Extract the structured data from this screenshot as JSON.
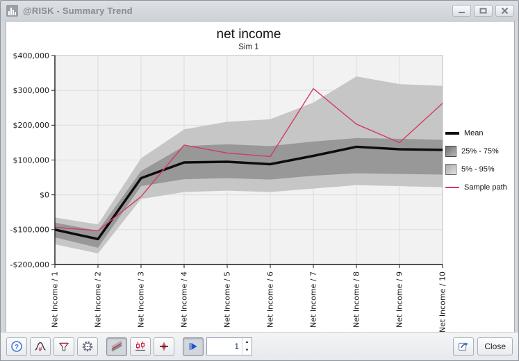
{
  "window": {
    "title": "@RISK - Summary Trend"
  },
  "chart_data": {
    "type": "line",
    "title": "net income",
    "subtitle": "Sim 1",
    "categories": [
      "Net Income / 1",
      "Net Income / 2",
      "Net Income / 3",
      "Net Income / 4",
      "Net Income / 5",
      "Net Income / 6",
      "Net Income / 7",
      "Net Income / 8",
      "Net Income / 9",
      "Net Income / 10"
    ],
    "series": [
      {
        "id": "mean",
        "name": "Mean",
        "color": "#0d0d0d",
        "width": 3.5,
        "values": [
          -100000,
          -127000,
          48000,
          93000,
          95000,
          88000,
          112000,
          138000,
          131000,
          129000
        ]
      },
      {
        "id": "band_inner",
        "name": "25% - 75%",
        "color": "#989898",
        "upper": [
          -80000,
          -103000,
          68000,
          140000,
          145000,
          140000,
          153000,
          163000,
          161000,
          158000
        ],
        "lower": [
          -122000,
          -152000,
          25000,
          45000,
          48000,
          44000,
          55000,
          62000,
          60000,
          58000
        ]
      },
      {
        "id": "band_outer",
        "name": "5% - 95%",
        "color": "#c6c6c6",
        "upper": [
          -65000,
          -85000,
          105000,
          188000,
          210000,
          217000,
          265000,
          340000,
          318000,
          313000
        ],
        "lower": [
          -142000,
          -168000,
          -12000,
          8000,
          12000,
          8000,
          18000,
          28000,
          25000,
          22000
        ]
      },
      {
        "id": "sample",
        "name": "Sample path",
        "color": "#d23b5f",
        "width": 1.4,
        "values": [
          -93000,
          -103000,
          -5000,
          143000,
          120000,
          110000,
          305000,
          203000,
          150000,
          263000
        ]
      }
    ],
    "ylim": [
      -200000,
      400000
    ],
    "ytick_step": 100000,
    "ytick_format": "currency",
    "grid": true,
    "legend_position": "right",
    "plot_bg": "#f2f2f2"
  },
  "legend": {
    "items": [
      {
        "label": "Mean",
        "swatch": "thick-black-line"
      },
      {
        "label": "25% - 75%",
        "swatch": "dark-gray-box"
      },
      {
        "label": "5% - 95%",
        "swatch": "light-gray-box"
      },
      {
        "label": "Sample path",
        "swatch": "crimson-line"
      }
    ]
  },
  "toolbar": {
    "spinner_value": "1",
    "close_label": "Close",
    "icons": [
      "help-icon",
      "distribution-format-icon",
      "filter-icon",
      "settings-gear-icon",
      "trend-bands-icon",
      "box-plot-icon",
      "distribution-overlay-icon",
      "play-step-icon",
      "spin-up-icon",
      "spin-down-icon",
      "export-icon"
    ],
    "accent_blue": "#3a6fd8",
    "accent_red": "#cc2244"
  }
}
